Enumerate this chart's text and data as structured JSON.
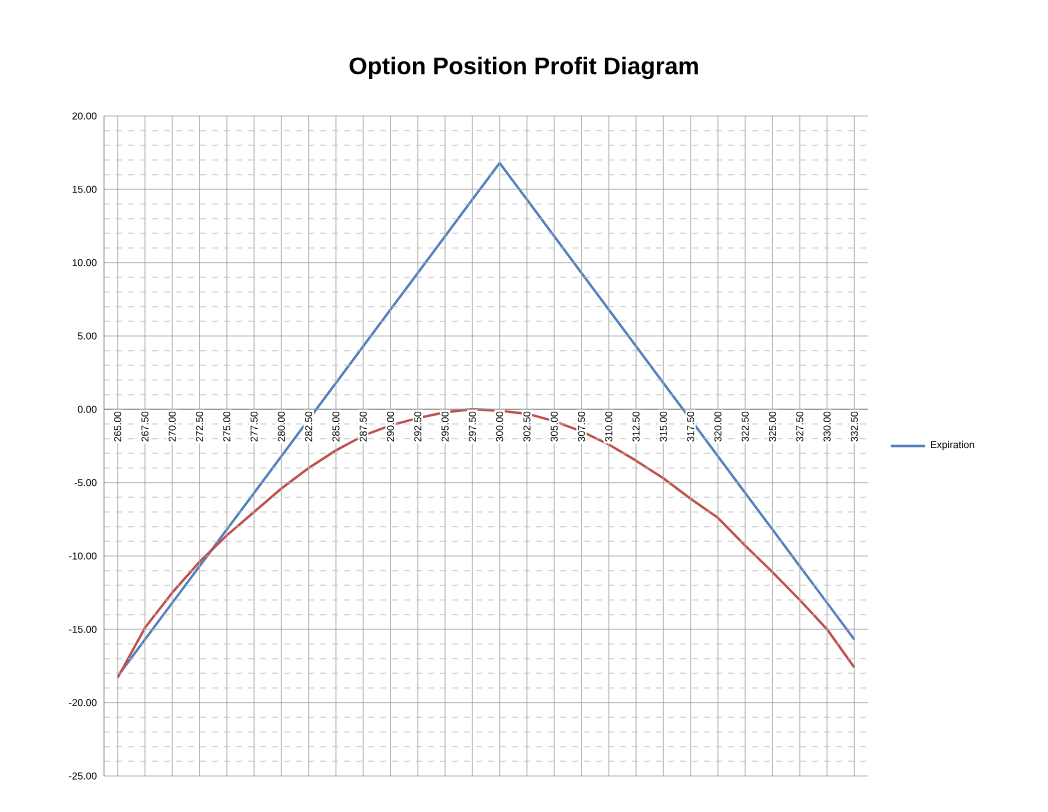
{
  "chart_data": {
    "type": "line",
    "title": "Option Position Profit Diagram",
    "categories": [
      "265.00",
      "267.50",
      "270.00",
      "272.50",
      "275.00",
      "277.50",
      "280.00",
      "282.50",
      "285.00",
      "287.50",
      "290.00",
      "292.50",
      "295.00",
      "297.50",
      "300.00",
      "302.50",
      "305.00",
      "307.50",
      "310.00",
      "312.50",
      "315.00",
      "317.50",
      "320.00",
      "322.50",
      "325.00",
      "327.50",
      "330.00",
      "332.50"
    ],
    "series": [
      {
        "name": "Expiration",
        "color": "#4f81bd",
        "values": [
          -18.2,
          -15.7,
          -13.2,
          -10.7,
          -8.2,
          -5.7,
          -3.2,
          -0.7,
          1.8,
          4.3,
          6.8,
          9.3,
          11.8,
          14.3,
          16.8,
          14.3,
          11.8,
          9.3,
          6.8,
          4.3,
          1.8,
          -0.7,
          -3.2,
          -5.7,
          -8.2,
          -10.7,
          -13.2,
          -15.7
        ]
      },
      {
        "color": "#c0504d",
        "values": [
          -18.3,
          -14.9,
          -12.5,
          -10.4,
          -8.6,
          -7.0,
          -5.4,
          -4.0,
          -2.8,
          -1.8,
          -1.1,
          -0.6,
          -0.2,
          0.0,
          -0.1,
          -0.3,
          -0.8,
          -1.5,
          -2.4,
          -3.5,
          -4.7,
          -6.1,
          -7.4,
          -9.3,
          -11.1,
          -13.0,
          -15.0,
          -17.6
        ]
      }
    ],
    "ylim": [
      -25,
      20
    ],
    "yticks": [
      {
        "value": -25,
        "label": "-25.00"
      },
      {
        "value": -20,
        "label": "-20.00"
      },
      {
        "value": -15,
        "label": "-15.00"
      },
      {
        "value": -10,
        "label": "-10.00"
      },
      {
        "value": -5,
        "label": "-5.00"
      },
      {
        "value": 0,
        "label": "0.00"
      },
      {
        "value": 5,
        "label": "5.00"
      },
      {
        "value": 10,
        "label": "10.00"
      },
      {
        "value": 15,
        "label": "15.00"
      },
      {
        "value": 20,
        "label": "20.00"
      }
    ],
    "grid": true,
    "legend": "right",
    "line_style": "solid",
    "marker": "none"
  }
}
